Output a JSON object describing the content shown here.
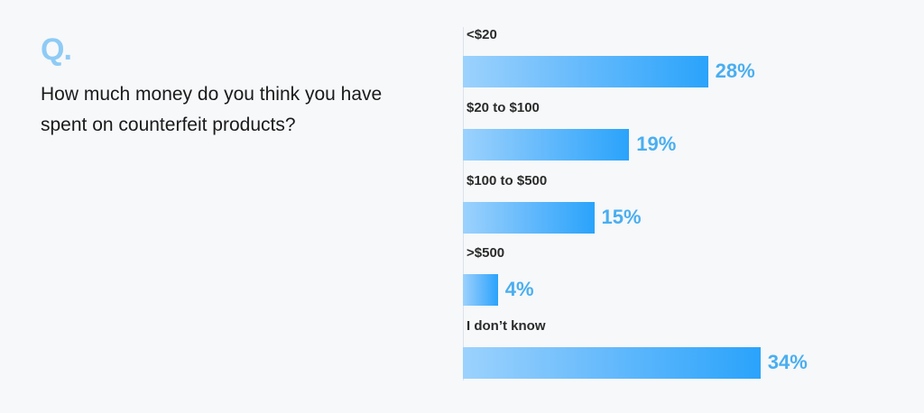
{
  "header": {
    "q_mark": "Q.",
    "question": "How much money do you think you have spent on counterfeit products?"
  },
  "colors": {
    "accent": "#8ecbf5",
    "bar_start": "#9cd2fd",
    "bar_end": "#2aa3fb",
    "value_text": "#4aaef0",
    "label_text": "#2b2b2b",
    "background": "#f6f8fa"
  },
  "chart_data": {
    "type": "bar",
    "orientation": "horizontal",
    "title": "How much money do you think you have spent on counterfeit products?",
    "categories": [
      "<$20",
      "$20 to $100",
      "$100 to $500",
      ">$500",
      "I don’t know"
    ],
    "values": [
      28,
      19,
      15,
      4,
      34
    ],
    "value_labels": [
      "28%",
      "19%",
      "15%",
      "4%",
      "34%"
    ],
    "xlabel": "",
    "ylabel": "",
    "unit": "%",
    "grid": false,
    "legend": null
  }
}
